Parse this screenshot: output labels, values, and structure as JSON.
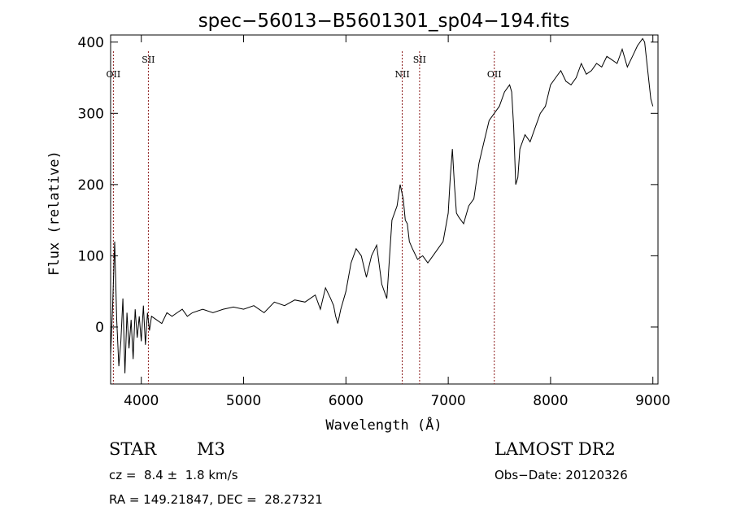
{
  "chart_data": {
    "type": "line",
    "title": "spec−56013−B5601301_sp04−194.fits",
    "xlabel": "Wavelength (Å)",
    "ylabel": "Flux (relative)",
    "xlim": [
      3700,
      9050
    ],
    "ylim": [
      -80,
      410
    ],
    "xticks": [
      4000,
      5000,
      6000,
      7000,
      8000,
      9000
    ],
    "yticks": [
      0,
      100,
      200,
      300,
      400
    ],
    "grid": false,
    "line_color": "#000000",
    "marker_color": "#8b1a1a",
    "series": [
      {
        "x": [
          3700,
          3720,
          3740,
          3760,
          3780,
          3800,
          3820,
          3840,
          3860,
          3880,
          3900,
          3920,
          3940,
          3960,
          3980,
          4000,
          4020,
          4040,
          4060,
          4080,
          4100,
          4150,
          4200,
          4250,
          4300,
          4350,
          4400,
          4450,
          4500,
          4600,
          4700,
          4800,
          4900,
          5000,
          5100,
          5200,
          5300,
          5400,
          5500,
          5600,
          5700,
          5750,
          5800,
          5850,
          5880,
          5900,
          5920,
          5950,
          6000,
          6050,
          6100,
          6150,
          6200,
          6250,
          6300,
          6350,
          6400,
          6450,
          6500,
          6530,
          6560,
          6580,
          6600,
          6620,
          6650,
          6700,
          6750,
          6800,
          6850,
          6900,
          6950,
          7000,
          7020,
          7040,
          7060,
          7080,
          7100,
          7150,
          7200,
          7250,
          7300,
          7350,
          7400,
          7450,
          7500,
          7550,
          7600,
          7620,
          7640,
          7660,
          7680,
          7700,
          7750,
          7800,
          7850,
          7900,
          7950,
          8000,
          8050,
          8100,
          8150,
          8200,
          8250,
          8300,
          8350,
          8400,
          8450,
          8500,
          8550,
          8600,
          8650,
          8700,
          8750,
          8800,
          8850,
          8900,
          8920,
          8950,
          8980,
          9000
        ],
        "y": [
          -40,
          30,
          120,
          10,
          -55,
          -20,
          40,
          -65,
          20,
          -30,
          10,
          -45,
          25,
          -15,
          15,
          -20,
          30,
          -25,
          20,
          -5,
          15,
          10,
          5,
          20,
          15,
          20,
          25,
          15,
          20,
          25,
          20,
          25,
          28,
          25,
          30,
          20,
          35,
          30,
          38,
          35,
          45,
          25,
          55,
          40,
          30,
          15,
          5,
          25,
          50,
          90,
          110,
          100,
          70,
          100,
          115,
          60,
          40,
          150,
          170,
          200,
          180,
          150,
          145,
          120,
          110,
          95,
          100,
          90,
          100,
          110,
          120,
          160,
          210,
          250,
          200,
          160,
          155,
          145,
          170,
          180,
          230,
          260,
          290,
          300,
          310,
          330,
          340,
          330,
          280,
          200,
          210,
          250,
          270,
          260,
          280,
          300,
          310,
          340,
          350,
          360,
          345,
          340,
          350,
          370,
          355,
          360,
          370,
          365,
          380,
          375,
          370,
          390,
          365,
          380,
          395,
          405,
          400,
          360,
          320,
          310
        ]
      }
    ],
    "lines": [
      {
        "label": "OII",
        "x": 3727
      },
      {
        "label": "SII",
        "x": 4069
      },
      {
        "label": "NII",
        "x": 6550
      },
      {
        "label": "SII",
        "x": 6720
      },
      {
        "label": "OII",
        "x": 7450
      }
    ]
  },
  "info": {
    "object_class": "STAR",
    "subclass": "M3",
    "survey": "LAMOST DR2",
    "redshift": "cz =  8.4 ±  1.8 km/s",
    "obs_date": "Obs−Date: 20120326",
    "coords": "RA = 149.21847, DEC =  28.27321"
  }
}
